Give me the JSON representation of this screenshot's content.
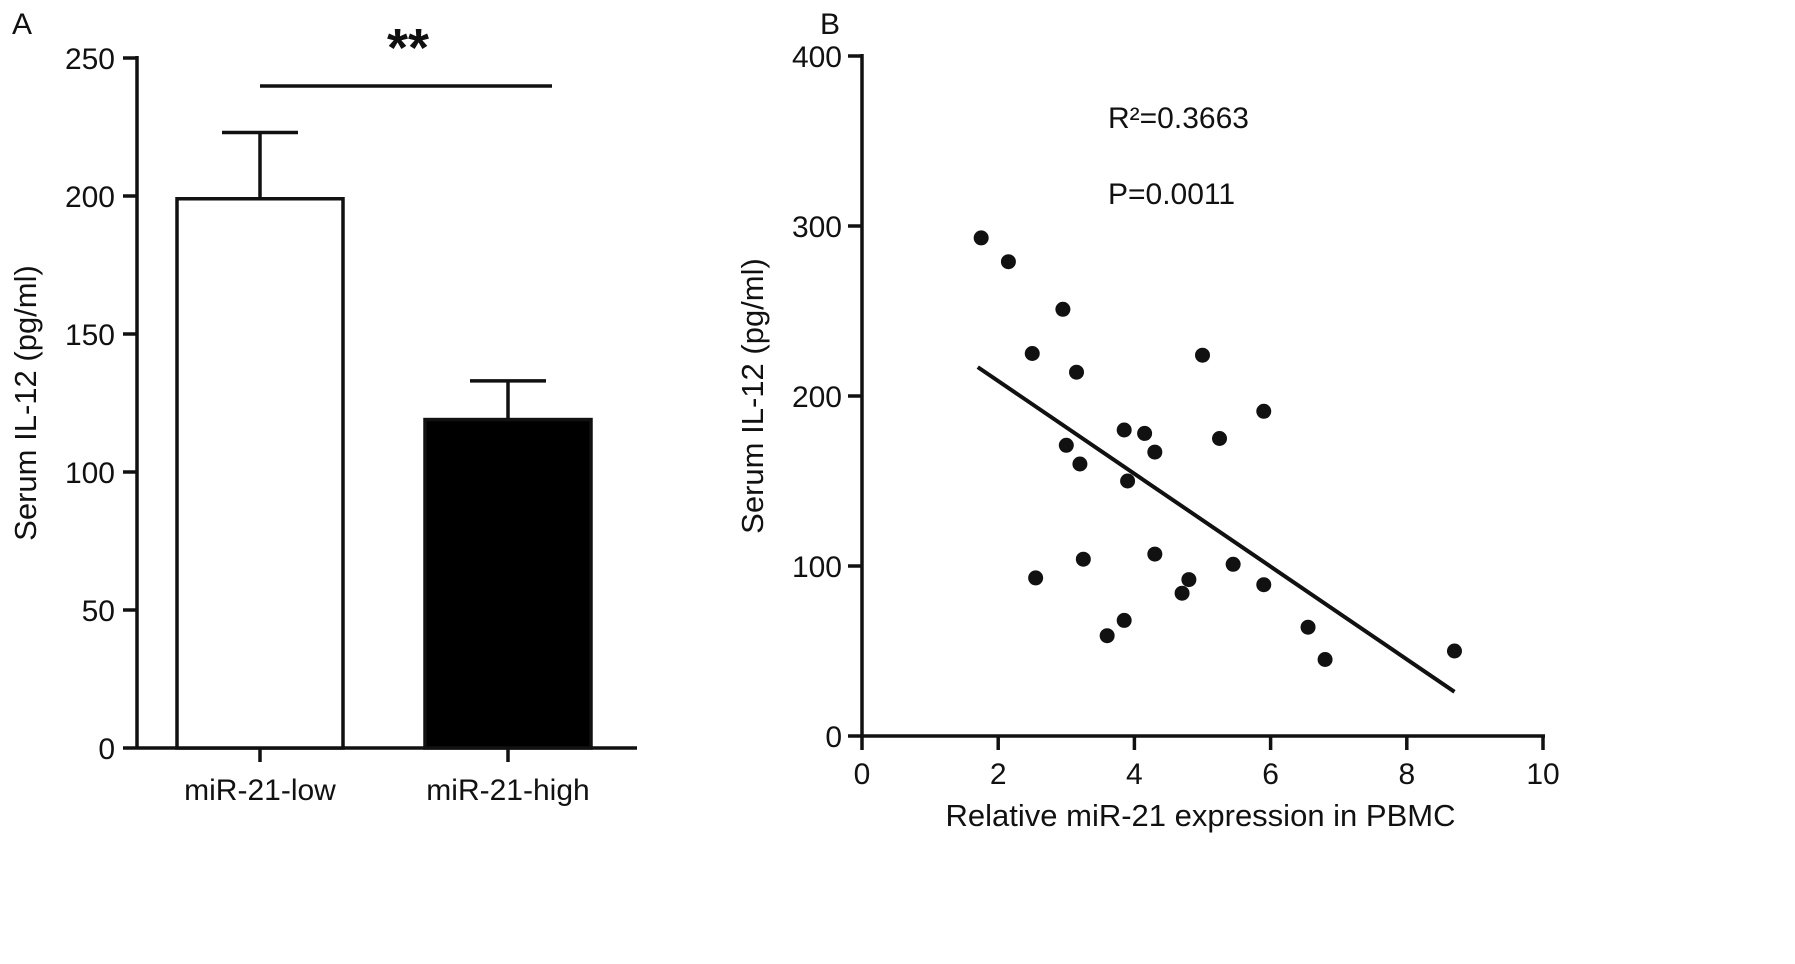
{
  "chart_data": [
    {
      "panel": "A",
      "type": "bar",
      "categories": [
        "miR-21-low",
        "miR-21-high"
      ],
      "values": [
        199,
        119
      ],
      "errors": [
        24,
        14
      ],
      "fills": [
        "#ffffff",
        "#000000"
      ],
      "ylabel": "Serum IL-12 (pg/ml)",
      "xlabel": "",
      "ylim": [
        0,
        250
      ],
      "yticks": [
        0,
        50,
        100,
        150,
        200,
        250
      ],
      "significance": "**"
    },
    {
      "panel": "B",
      "type": "scatter",
      "xlabel": "Relative miR-21 expression in PBMC",
      "ylabel": "Serum IL-12 (pg/ml)",
      "xlim": [
        0,
        10
      ],
      "ylim": [
        0,
        400
      ],
      "xticks": [
        0,
        2,
        4,
        6,
        8,
        10
      ],
      "yticks": [
        0,
        100,
        200,
        300,
        400
      ],
      "annotations": {
        "r2": "R²=0.3663",
        "p": "P=0.0011"
      },
      "points": [
        {
          "x": 1.75,
          "y": 293
        },
        {
          "x": 2.15,
          "y": 279
        },
        {
          "x": 2.95,
          "y": 251
        },
        {
          "x": 2.5,
          "y": 225
        },
        {
          "x": 3.15,
          "y": 214
        },
        {
          "x": 5.0,
          "y": 224
        },
        {
          "x": 5.9,
          "y": 191
        },
        {
          "x": 5.25,
          "y": 175
        },
        {
          "x": 3.0,
          "y": 171
        },
        {
          "x": 3.85,
          "y": 180
        },
        {
          "x": 4.15,
          "y": 178
        },
        {
          "x": 4.3,
          "y": 167
        },
        {
          "x": 3.2,
          "y": 160
        },
        {
          "x": 3.9,
          "y": 150
        },
        {
          "x": 3.25,
          "y": 104
        },
        {
          "x": 4.3,
          "y": 107
        },
        {
          "x": 5.45,
          "y": 101
        },
        {
          "x": 2.55,
          "y": 93
        },
        {
          "x": 4.8,
          "y": 92
        },
        {
          "x": 5.9,
          "y": 89
        },
        {
          "x": 4.7,
          "y": 84
        },
        {
          "x": 3.85,
          "y": 68
        },
        {
          "x": 3.6,
          "y": 59
        },
        {
          "x": 6.55,
          "y": 64
        },
        {
          "x": 6.8,
          "y": 45
        },
        {
          "x": 8.7,
          "y": 50
        }
      ],
      "fit_line": {
        "x": [
          1.7,
          8.7
        ],
        "y": [
          217,
          26
        ]
      }
    }
  ],
  "panels": {
    "a_label": "A",
    "b_label": "B"
  }
}
